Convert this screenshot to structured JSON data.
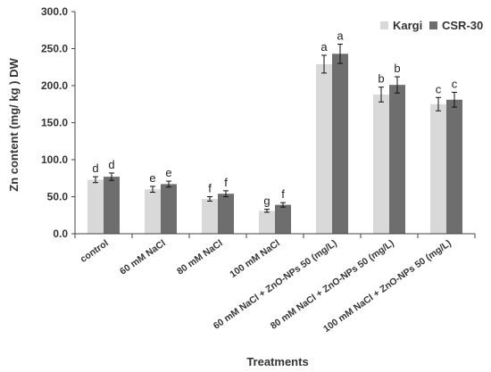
{
  "chart_data": {
    "type": "bar",
    "title": "",
    "xlabel": "Treatments",
    "ylabel": "Zn content (mg/ kg ) DW",
    "ylim": [
      0,
      300
    ],
    "yticks": [
      "0.0",
      "50.0",
      "100.0",
      "150.0",
      "200.0",
      "250.0",
      "300.0"
    ],
    "categories": [
      "control",
      "60 mM NaCl",
      "80 mM NaCl",
      "100 mM NaCl",
      "60 mM NaCl + ZnO-NPs 50 (mg/L)",
      "80 mM NaCl + ZnO-NPs 50 (mg/L)",
      "100 mM NaCl + ZnO-NPs 50 (mg/L)"
    ],
    "series": [
      {
        "name": "Kargi",
        "color": "#d9d9d9",
        "values": [
          73,
          60,
          47,
          31,
          229,
          188,
          175
        ],
        "errors": [
          4,
          4,
          3,
          2,
          12,
          10,
          9
        ],
        "letters": [
          "d",
          "e",
          "f",
          "g",
          "a",
          "b",
          "c"
        ]
      },
      {
        "name": "CSR-30",
        "color": "#6e6e6e",
        "values": [
          77,
          67,
          54,
          39,
          243,
          201,
          181
        ],
        "errors": [
          5,
          4,
          4,
          3,
          13,
          11,
          10
        ],
        "letters": [
          "d",
          "e",
          "f",
          "f",
          "a",
          "b",
          "c"
        ]
      }
    ],
    "grid": false,
    "legend_position": "top-right"
  }
}
